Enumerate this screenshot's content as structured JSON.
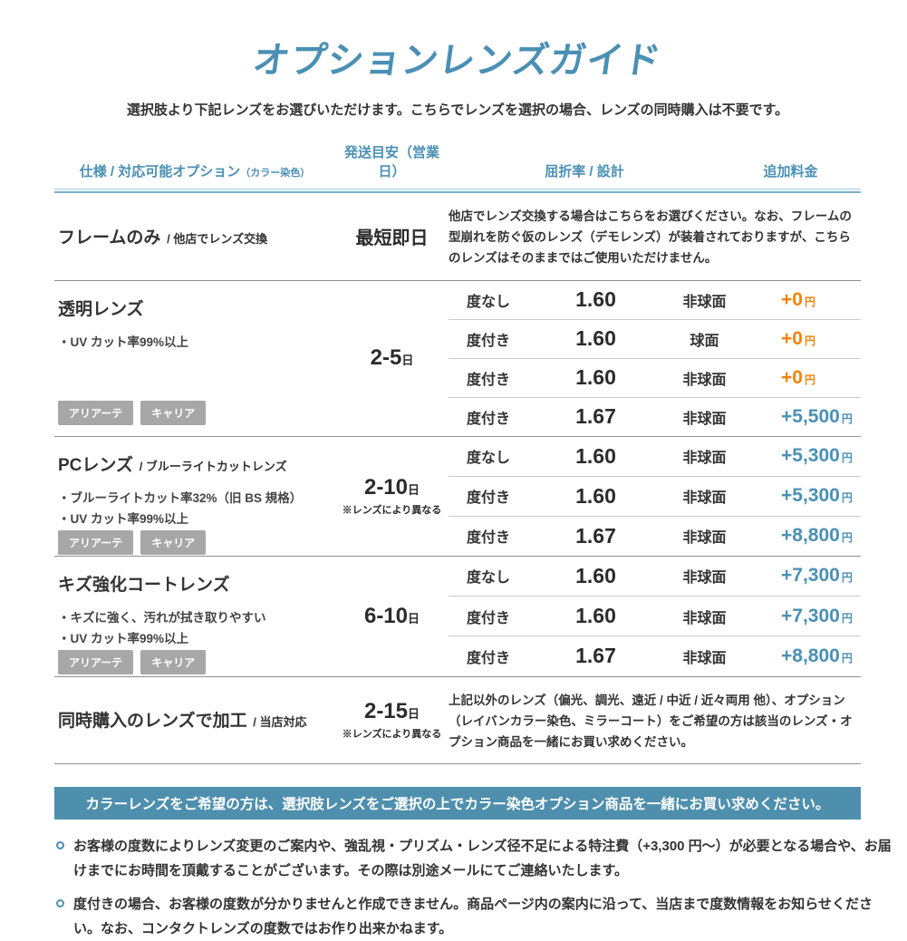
{
  "page": {
    "title": "オプションレンズガイド",
    "subtitle": "選択肢より下記レンズをお選びいただけます。こちらでレンズを選択の場合、レンズの同時購入は不要です。"
  },
  "header": {
    "col_spec": "仕様 / 対応可能オプション",
    "col_spec_note": "（カラー染色）",
    "col_shipping": "発送目安（営業日）",
    "col_index": "屈折率 / 設計",
    "col_price": "追加料金"
  },
  "sections": [
    {
      "title": "フレームのみ",
      "subtitle": "/ 他店でレンズ交換",
      "shipping_days": "最短即日",
      "note": "他店でレンズ交換する場合はこちらをお選びください。なお、フレームの型崩れを防ぐ仮のレンズ（デモレンズ）が装着されておりますが、こちらのレンズはそのままではご使用いただけません。"
    },
    {
      "title": "透明レンズ",
      "features": [
        "・UV カット率99%以上"
      ],
      "shipping_days": "2-5",
      "shipping_unit": "日",
      "badges": [
        "アリアーテ",
        "キャリア"
      ],
      "rows": [
        {
          "power": "度なし",
          "index": "1.60",
          "design": "非球面",
          "price": "+0",
          "unit": "円",
          "color": "orange"
        },
        {
          "power": "度付き",
          "index": "1.60",
          "design": "球面",
          "price": "+0",
          "unit": "円",
          "color": "orange"
        },
        {
          "power": "度付き",
          "index": "1.60",
          "design": "非球面",
          "price": "+0",
          "unit": "円",
          "color": "orange"
        },
        {
          "power": "度付き",
          "index": "1.67",
          "design": "非球面",
          "price": "+5,500",
          "unit": "円",
          "color": "blue"
        }
      ]
    },
    {
      "title": "PCレンズ",
      "subtitle": "/ ブルーライトカットレンズ",
      "features": [
        "・ブルーライトカット率32%（旧 BS 規格）",
        "・UV カット率99%以上"
      ],
      "shipping_days": "2-10",
      "shipping_unit": "日",
      "shipping_note": "※レンズにより異なる",
      "badges": [
        "アリアーテ",
        "キャリア"
      ],
      "rows": [
        {
          "power": "度なし",
          "index": "1.60",
          "design": "非球面",
          "price": "+5,300",
          "unit": "円",
          "color": "blue"
        },
        {
          "power": "度付き",
          "index": "1.60",
          "design": "非球面",
          "price": "+5,300",
          "unit": "円",
          "color": "blue"
        },
        {
          "power": "度付き",
          "index": "1.67",
          "design": "非球面",
          "price": "+8,800",
          "unit": "円",
          "color": "blue"
        }
      ]
    },
    {
      "title": "キズ強化コートレンズ",
      "features": [
        "・キズに強く、汚れが拭き取りやすい",
        "・UV カット率99%以上"
      ],
      "shipping_days": "6-10",
      "shipping_unit": "日",
      "badges": [
        "アリアーテ",
        "キャリア"
      ],
      "rows": [
        {
          "power": "度なし",
          "index": "1.60",
          "design": "非球面",
          "price": "+7,300",
          "unit": "円",
          "color": "blue"
        },
        {
          "power": "度付き",
          "index": "1.60",
          "design": "非球面",
          "price": "+7,300",
          "unit": "円",
          "color": "blue"
        },
        {
          "power": "度付き",
          "index": "1.67",
          "design": "非球面",
          "price": "+8,800",
          "unit": "円",
          "color": "blue"
        }
      ]
    },
    {
      "title": "同時購入のレンズで加工",
      "subtitle": "/ 当店対応",
      "shipping_days": "2-15",
      "shipping_unit": "日",
      "shipping_note": "※レンズにより異なる",
      "note": "上記以外のレンズ（偏光、調光、遠近 / 中近 / 近々両用 他）、オプション（レイバンカラー染色、ミラーコート）をご希望の方は該当のレンズ・オプション商品を一緒にお買い求めください。"
    }
  ],
  "banner": {
    "text": "カラーレンズをご希望の方は、選択肢レンズをご選択の上でカラー染色オプション商品を一緒にお買い求めください。"
  },
  "notes": [
    "お客様の度数によりレンズ変更のご案内や、強乱視・プリズム・レンズ径不足による特注費（+3,300 円～）が必要となる場合や、お届けまでにお時間を頂戴することがございます。その際は別途メールにてご連絡いたします。",
    "度付きの場合、お客様の度数が分かりませんと作成できません。商品ページ内の案内に沿って、当店まで度数情報をお知らせください。なお、コンタクトレンズの度数ではお作り出来かねます。"
  ],
  "colors": {
    "accent": "#4a90b4",
    "price_orange": "#f5820a",
    "price_blue": "#4a90b4",
    "banner_bg": "#4f8fae",
    "badge_bg": "#a7a7a7"
  }
}
